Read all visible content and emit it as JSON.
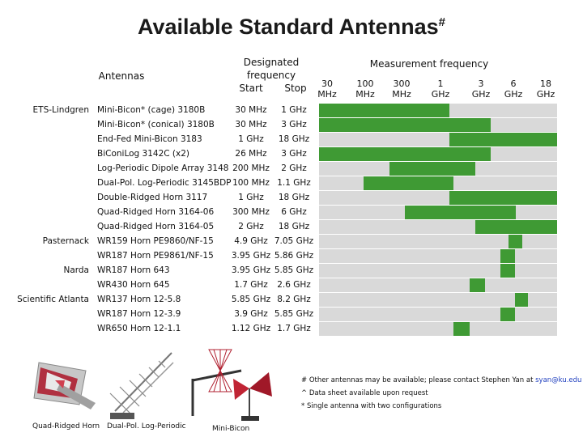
{
  "title": "Available Standard Antennas",
  "title_mark": "#",
  "headers": {
    "antennas": "Antennas",
    "designated": "Designated frequency",
    "start": "Start",
    "stop": "Stop",
    "measurement": "Measurement frequency"
  },
  "scale": [
    {
      "n": "30",
      "u": "MHz"
    },
    {
      "n": "100",
      "u": "MHz"
    },
    {
      "n": "300",
      "u": "MHz"
    },
    {
      "n": "1",
      "u": "GHz"
    },
    {
      "n": "3",
      "u": "GHz"
    },
    {
      "n": "6",
      "u": "GHz"
    },
    {
      "n": "18",
      "u": "GHz"
    }
  ],
  "vendors": [
    {
      "name": "ETS-Lindgren",
      "row": 0
    },
    {
      "name": "Pasternack",
      "row": 9
    },
    {
      "name": "Narda",
      "row": 11
    },
    {
      "name": "Scientific Atlanta",
      "row": 13
    }
  ],
  "rows": [
    {
      "antenna": "Mini-Bicon* (cage) 3180B",
      "start": "30 MHz",
      "stop": "1 GHz",
      "start_mhz": 30,
      "stop_mhz": 1000
    },
    {
      "antenna": "Mini-Bicon* (conical) 3180B",
      "start": "30 MHz",
      "stop": "3 GHz",
      "start_mhz": 30,
      "stop_mhz": 3000
    },
    {
      "antenna": "End-Fed Mini-Bicon 3183",
      "start": "1 GHz",
      "stop": "18 GHz",
      "start_mhz": 1000,
      "stop_mhz": 18000
    },
    {
      "antenna": "BiConiLog 3142C (x2)",
      "start": "26 MHz",
      "stop": "3 GHz",
      "start_mhz": 26,
      "stop_mhz": 3000
    },
    {
      "antenna": "Log-Periodic Dipole Array 3148",
      "start": "200 MHz",
      "stop": "2 GHz",
      "start_mhz": 200,
      "stop_mhz": 2000
    },
    {
      "antenna": "Dual-Pol. Log-Periodic 3145BDP",
      "start": "100 MHz",
      "stop": "1.1 GHz",
      "start_mhz": 100,
      "stop_mhz": 1100
    },
    {
      "antenna": "Double-Ridged Horn 3117",
      "start": "1 GHz",
      "stop": "18 GHz",
      "start_mhz": 1000,
      "stop_mhz": 18000
    },
    {
      "antenna": "Quad-Ridged Horn 3164-06",
      "start": "300 MHz",
      "stop": "6 GHz",
      "start_mhz": 300,
      "stop_mhz": 6000
    },
    {
      "antenna": "Quad-Ridged Horn 3164-05",
      "start": "2 GHz",
      "stop": "18 GHz",
      "start_mhz": 2000,
      "stop_mhz": 18000
    },
    {
      "antenna": "WR159 Horn PE9860/NF-15",
      "start": "4.9 GHz",
      "stop": "7.05 GHz",
      "start_mhz": 4900,
      "stop_mhz": 7050
    },
    {
      "antenna": "WR187 Horn PE9861/NF-15",
      "start": "3.95 GHz",
      "stop": "5.86 GHz",
      "start_mhz": 3950,
      "stop_mhz": 5860
    },
    {
      "antenna": "WR187 Horn 643",
      "start": "3.95 GHz",
      "stop": "5.85 GHz",
      "start_mhz": 3950,
      "stop_mhz": 5850
    },
    {
      "antenna": "WR430 Horn 645",
      "start": "1.7 GHz",
      "stop": "2.6 GHz",
      "start_mhz": 1700,
      "stop_mhz": 2600
    },
    {
      "antenna": "WR137 Horn 12-5.8",
      "start": "5.85 GHz",
      "stop": "8.2 GHz",
      "start_mhz": 5850,
      "stop_mhz": 8200
    },
    {
      "antenna": "WR187 Horn 12-3.9",
      "start": "3.9 GHz",
      "stop": "5.85 GHz",
      "start_mhz": 3900,
      "stop_mhz": 5850
    },
    {
      "antenna": "WR650 Horn 12-1.1",
      "start": "1.12 GHz",
      "stop": "1.7 GHz",
      "start_mhz": 1120,
      "stop_mhz": 1700
    }
  ],
  "colors": {
    "bar": "#3f9a34",
    "row": "#d9d9d9",
    "link": "#1f3fbf"
  },
  "notes": {
    "n1": "# Other antennas may be available; please contact Stephen Yan at",
    "email": "syan@ku.edu",
    "n2": "^ Data sheet available upon request",
    "n3": "* Single antenna with two configurations"
  },
  "captions": {
    "quad": "Quad-Ridged Horn",
    "dual": "Dual-Pol. Log-Periodic",
    "bicon": "Mini-Bicon"
  }
}
